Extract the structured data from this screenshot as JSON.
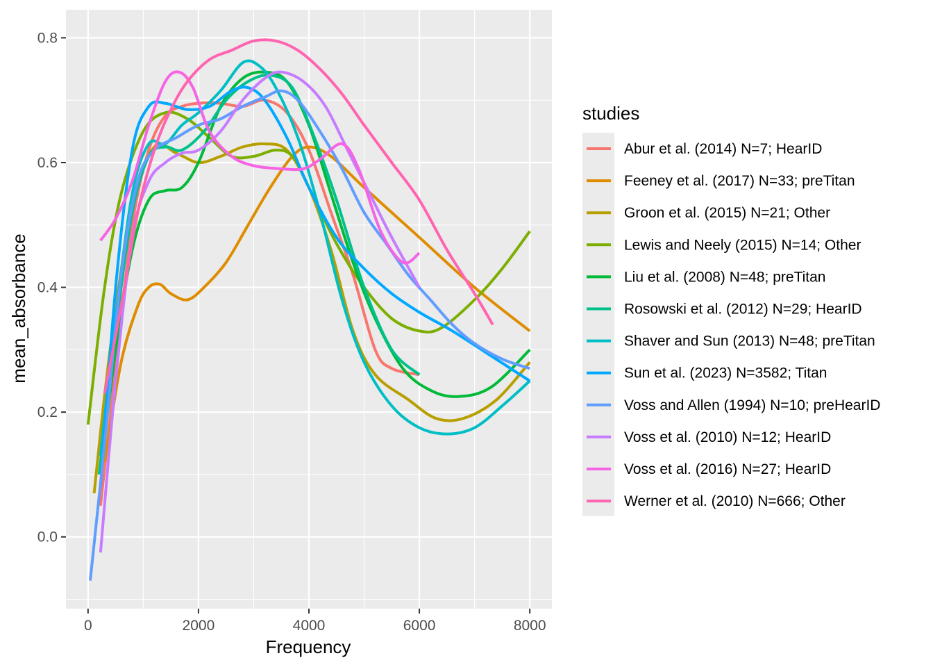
{
  "chart_data": {
    "type": "line",
    "xlabel": "Frequency",
    "ylabel": "mean_absorbance",
    "xlim": [
      -400,
      8400
    ],
    "ylim": [
      -0.115,
      0.845
    ],
    "xticks": [
      0,
      2000,
      4000,
      6000,
      8000
    ],
    "xtick_labels": [
      "0",
      "2000",
      "4000",
      "6000",
      "8000"
    ],
    "yticks": [
      0.0,
      0.2,
      0.4,
      0.6,
      0.8
    ],
    "ytick_labels": [
      "0.0",
      "0.2",
      "0.4",
      "0.6",
      "0.8"
    ],
    "grid": true,
    "panel_background": "#EBEBEB",
    "legend": {
      "title": "studies",
      "position": "right"
    },
    "series": [
      {
        "name": "Abur et al. (2014) N=7; HearID",
        "color": "#F8766D",
        "points": [
          [
            226,
            0.05
          ],
          [
            500,
            0.27
          ],
          [
            800,
            0.5
          ],
          [
            1100,
            0.62
          ],
          [
            1400,
            0.675
          ],
          [
            1700,
            0.69
          ],
          [
            2000,
            0.695
          ],
          [
            2400,
            0.695
          ],
          [
            2800,
            0.69
          ],
          [
            3200,
            0.7
          ],
          [
            3600,
            0.68
          ],
          [
            4000,
            0.62
          ],
          [
            4400,
            0.52
          ],
          [
            4800,
            0.42
          ],
          [
            5200,
            0.3
          ],
          [
            5500,
            0.27
          ],
          [
            6000,
            0.26
          ]
        ]
      },
      {
        "name": "Feeney et al. (2017) N=33; preTitan",
        "color": "#DE8C00",
        "points": [
          [
            300,
            0.12
          ],
          [
            600,
            0.28
          ],
          [
            900,
            0.37
          ],
          [
            1100,
            0.4
          ],
          [
            1300,
            0.405
          ],
          [
            1500,
            0.39
          ],
          [
            1800,
            0.38
          ],
          [
            2100,
            0.4
          ],
          [
            2500,
            0.44
          ],
          [
            2900,
            0.5
          ],
          [
            3300,
            0.56
          ],
          [
            3700,
            0.61
          ],
          [
            4000,
            0.625
          ],
          [
            4400,
            0.61
          ],
          [
            5000,
            0.56
          ],
          [
            6000,
            0.48
          ],
          [
            7000,
            0.4
          ],
          [
            8000,
            0.33
          ]
        ]
      },
      {
        "name": "Groon et al. (2015) N=21; Other",
        "color": "#B79F00",
        "points": [
          [
            110,
            0.07
          ],
          [
            400,
            0.3
          ],
          [
            800,
            0.53
          ],
          [
            1200,
            0.625
          ],
          [
            1600,
            0.615
          ],
          [
            2000,
            0.6
          ],
          [
            2400,
            0.61
          ],
          [
            2800,
            0.625
          ],
          [
            3200,
            0.63
          ],
          [
            3600,
            0.62
          ],
          [
            4000,
            0.56
          ],
          [
            4400,
            0.46
          ],
          [
            4800,
            0.33
          ],
          [
            5200,
            0.26
          ],
          [
            5800,
            0.22
          ],
          [
            6300,
            0.19
          ],
          [
            6800,
            0.19
          ],
          [
            7400,
            0.22
          ],
          [
            8000,
            0.28
          ]
        ]
      },
      {
        "name": "Lewis and Neely (2015) N=14; Other",
        "color": "#7CAE00",
        "points": [
          [
            0,
            0.18
          ],
          [
            300,
            0.4
          ],
          [
            600,
            0.55
          ],
          [
            1000,
            0.65
          ],
          [
            1400,
            0.68
          ],
          [
            1800,
            0.67
          ],
          [
            2200,
            0.64
          ],
          [
            2600,
            0.61
          ],
          [
            3000,
            0.61
          ],
          [
            3400,
            0.62
          ],
          [
            3700,
            0.61
          ],
          [
            4000,
            0.56
          ],
          [
            4500,
            0.47
          ],
          [
            5000,
            0.4
          ],
          [
            5500,
            0.35
          ],
          [
            6000,
            0.33
          ],
          [
            6400,
            0.335
          ],
          [
            7000,
            0.38
          ],
          [
            7500,
            0.43
          ],
          [
            8000,
            0.49
          ]
        ]
      },
      {
        "name": "Liu et al. (2008) N=48; preTitan",
        "color": "#00BA38",
        "points": [
          [
            226,
            0.1
          ],
          [
            500,
            0.3
          ],
          [
            800,
            0.46
          ],
          [
            1100,
            0.54
          ],
          [
            1400,
            0.555
          ],
          [
            1700,
            0.56
          ],
          [
            2000,
            0.6
          ],
          [
            2400,
            0.69
          ],
          [
            2800,
            0.735
          ],
          [
            3200,
            0.745
          ],
          [
            3600,
            0.73
          ],
          [
            4000,
            0.66
          ],
          [
            4400,
            0.55
          ],
          [
            4800,
            0.44
          ],
          [
            5200,
            0.35
          ],
          [
            5700,
            0.27
          ],
          [
            6200,
            0.235
          ],
          [
            6700,
            0.225
          ],
          [
            7300,
            0.24
          ],
          [
            8000,
            0.3
          ]
        ]
      },
      {
        "name": "Rosowski et al. (2012) N=29; HearID",
        "color": "#00C08B",
        "points": [
          [
            200,
            0.1
          ],
          [
            500,
            0.33
          ],
          [
            800,
            0.52
          ],
          [
            1100,
            0.61
          ],
          [
            1400,
            0.625
          ],
          [
            1700,
            0.62
          ],
          [
            2100,
            0.65
          ],
          [
            2500,
            0.7
          ],
          [
            2900,
            0.73
          ],
          [
            3300,
            0.74
          ],
          [
            3700,
            0.72
          ],
          [
            4100,
            0.64
          ],
          [
            4500,
            0.54
          ],
          [
            5000,
            0.4
          ],
          [
            5500,
            0.3
          ],
          [
            6000,
            0.26
          ]
        ]
      },
      {
        "name": "Shaver and Sun (2013) N=48; preTitan",
        "color": "#00BFC4",
        "points": [
          [
            226,
            0.13
          ],
          [
            500,
            0.35
          ],
          [
            800,
            0.55
          ],
          [
            1100,
            0.63
          ],
          [
            1400,
            0.63
          ],
          [
            1700,
            0.66
          ],
          [
            2000,
            0.68
          ],
          [
            2400,
            0.715
          ],
          [
            2800,
            0.76
          ],
          [
            3100,
            0.755
          ],
          [
            3400,
            0.72
          ],
          [
            3800,
            0.64
          ],
          [
            4200,
            0.52
          ],
          [
            4600,
            0.38
          ],
          [
            5000,
            0.28
          ],
          [
            5500,
            0.21
          ],
          [
            6000,
            0.175
          ],
          [
            6500,
            0.165
          ],
          [
            7000,
            0.175
          ],
          [
            7500,
            0.21
          ],
          [
            8000,
            0.25
          ]
        ]
      },
      {
        "name": "Sun et al. (2023) N=3582; Titan",
        "color": "#00A9FF",
        "points": [
          [
            226,
            0.08
          ],
          [
            500,
            0.4
          ],
          [
            800,
            0.62
          ],
          [
            1100,
            0.69
          ],
          [
            1400,
            0.695
          ],
          [
            1800,
            0.685
          ],
          [
            2200,
            0.69
          ],
          [
            2600,
            0.715
          ],
          [
            2900,
            0.72
          ],
          [
            3200,
            0.7
          ],
          [
            3600,
            0.64
          ],
          [
            4000,
            0.56
          ],
          [
            4500,
            0.48
          ],
          [
            5000,
            0.43
          ],
          [
            5500,
            0.39
          ],
          [
            6000,
            0.36
          ],
          [
            6600,
            0.33
          ],
          [
            7300,
            0.29
          ],
          [
            8000,
            0.25
          ]
        ]
      },
      {
        "name": "Voss and Allen (1994) N=10; preHearID",
        "color": "#619CFF",
        "points": [
          [
            40,
            -0.07
          ],
          [
            300,
            0.15
          ],
          [
            600,
            0.42
          ],
          [
            900,
            0.57
          ],
          [
            1200,
            0.62
          ],
          [
            1600,
            0.64
          ],
          [
            2000,
            0.66
          ],
          [
            2400,
            0.67
          ],
          [
            2800,
            0.69
          ],
          [
            3200,
            0.705
          ],
          [
            3500,
            0.715
          ],
          [
            3800,
            0.7
          ],
          [
            4200,
            0.65
          ],
          [
            4600,
            0.59
          ],
          [
            5000,
            0.52
          ],
          [
            5400,
            0.47
          ],
          [
            5800,
            0.42
          ],
          [
            6200,
            0.38
          ],
          [
            6600,
            0.34
          ],
          [
            7000,
            0.31
          ],
          [
            7500,
            0.285
          ],
          [
            8000,
            0.27
          ]
        ]
      },
      {
        "name": "Voss et al. (2010) N=12; HearID",
        "color": "#C77CFF",
        "points": [
          [
            226,
            -0.025
          ],
          [
            500,
            0.25
          ],
          [
            800,
            0.48
          ],
          [
            1100,
            0.57
          ],
          [
            1400,
            0.6
          ],
          [
            1700,
            0.615
          ],
          [
            2000,
            0.62
          ],
          [
            2400,
            0.65
          ],
          [
            2800,
            0.7
          ],
          [
            3200,
            0.735
          ],
          [
            3500,
            0.745
          ],
          [
            3900,
            0.73
          ],
          [
            4300,
            0.69
          ],
          [
            4700,
            0.62
          ],
          [
            5100,
            0.55
          ],
          [
            5500,
            0.48
          ],
          [
            6000,
            0.4
          ]
        ]
      },
      {
        "name": "Voss et al. (2016) N=27; HearID",
        "color": "#F564E3",
        "points": [
          [
            226,
            0.475
          ],
          [
            500,
            0.51
          ],
          [
            800,
            0.57
          ],
          [
            1100,
            0.66
          ],
          [
            1400,
            0.73
          ],
          [
            1650,
            0.745
          ],
          [
            1900,
            0.72
          ],
          [
            2200,
            0.65
          ],
          [
            2600,
            0.61
          ],
          [
            3000,
            0.595
          ],
          [
            3500,
            0.59
          ],
          [
            3900,
            0.59
          ],
          [
            4200,
            0.605
          ],
          [
            4600,
            0.63
          ],
          [
            4900,
            0.59
          ],
          [
            5300,
            0.49
          ],
          [
            5700,
            0.44
          ],
          [
            6000,
            0.455
          ]
        ]
      },
      {
        "name": "Werner et al. (2010) N=666; Other",
        "color": "#FF64B0",
        "points": [
          [
            300,
            0.23
          ],
          [
            600,
            0.37
          ],
          [
            900,
            0.52
          ],
          [
            1200,
            0.62
          ],
          [
            1500,
            0.685
          ],
          [
            1800,
            0.73
          ],
          [
            2200,
            0.765
          ],
          [
            2600,
            0.78
          ],
          [
            3000,
            0.795
          ],
          [
            3400,
            0.795
          ],
          [
            3800,
            0.78
          ],
          [
            4200,
            0.75
          ],
          [
            4600,
            0.71
          ],
          [
            5000,
            0.66
          ],
          [
            5500,
            0.6
          ],
          [
            6000,
            0.54
          ],
          [
            6500,
            0.46
          ],
          [
            7000,
            0.39
          ],
          [
            7330,
            0.34
          ]
        ]
      }
    ]
  }
}
